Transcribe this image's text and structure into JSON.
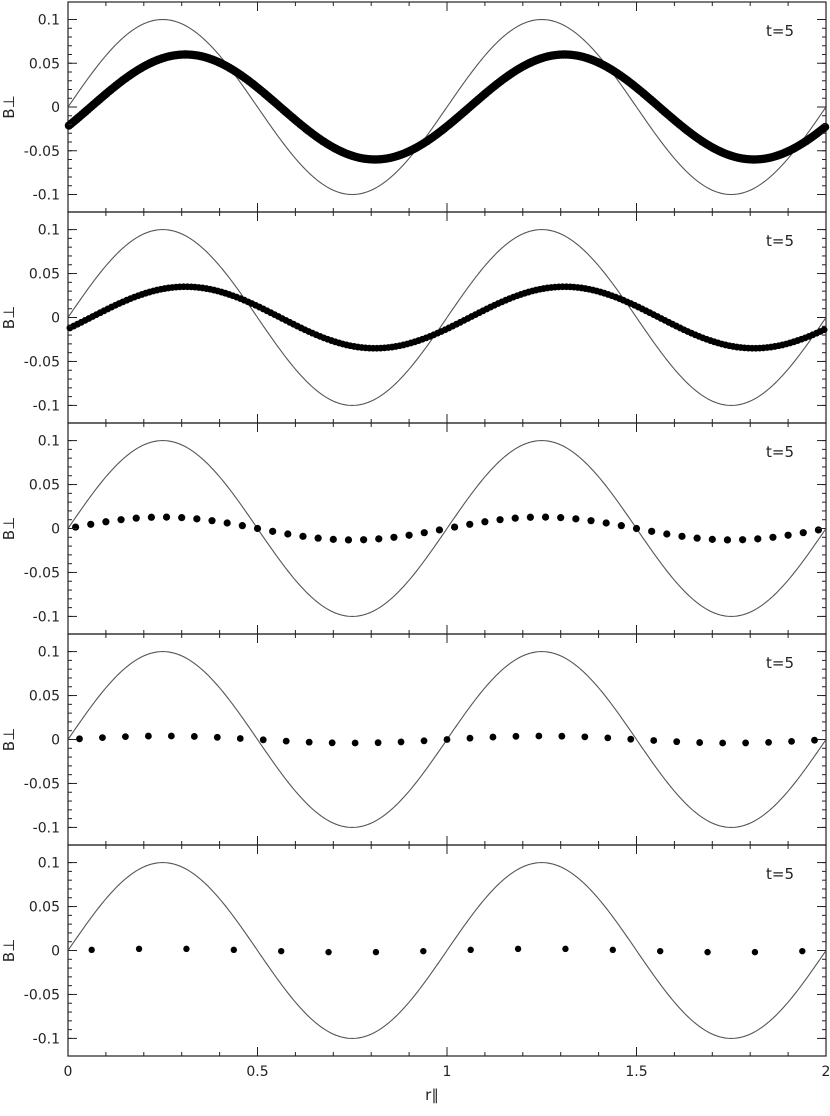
{
  "chart_data": [
    {
      "type": "scatter",
      "annotation": "t=5",
      "ylabel": "B⊥",
      "xlabel": "",
      "xlim": [
        0,
        2
      ],
      "ylim": [
        -0.12,
        0.12
      ],
      "xticks": [
        0,
        0.5,
        1,
        1.5,
        2
      ],
      "xtick_labels": [
        "",
        "",
        "",
        "",
        ""
      ],
      "yticks": [
        0.1,
        0.05,
        0,
        -0.05,
        -0.1
      ],
      "ytick_labels": [
        "0.1",
        "0.05",
        "0",
        "-0.05",
        "-0.1"
      ],
      "reference_curve": {
        "amplitude": 0.1,
        "period": 1,
        "phase": 0
      },
      "series": [
        {
          "amplitude": 0.06,
          "phase": 0.06,
          "n_points": 400
        }
      ]
    },
    {
      "type": "scatter",
      "annotation": "t=5",
      "ylabel": "B⊥",
      "xlabel": "",
      "xlim": [
        0,
        2
      ],
      "ylim": [
        -0.12,
        0.12
      ],
      "xticks": [
        0,
        0.5,
        1,
        1.5,
        2
      ],
      "xtick_labels": [
        "",
        "",
        "",
        "",
        ""
      ],
      "yticks": [
        0.1,
        0.05,
        0,
        -0.05,
        -0.1
      ],
      "ytick_labels": [
        "0.1",
        "0.05",
        "0",
        "-0.05",
        "-0.1"
      ],
      "reference_curve": {
        "amplitude": 0.1,
        "period": 1,
        "phase": 0
      },
      "series": [
        {
          "amplitude": 0.035,
          "phase": 0.06,
          "n_points": 200
        }
      ]
    },
    {
      "type": "scatter",
      "annotation": "t=5",
      "ylabel": "B⊥",
      "xlabel": "",
      "xlim": [
        0,
        2
      ],
      "ylim": [
        -0.12,
        0.12
      ],
      "xticks": [
        0,
        0.5,
        1,
        1.5,
        2
      ],
      "xtick_labels": [
        "",
        "",
        "",
        "",
        ""
      ],
      "yticks": [
        0.1,
        0.05,
        0,
        -0.05,
        -0.1
      ],
      "ytick_labels": [
        "0.1",
        "0.05",
        "0",
        "-0.05",
        "-0.1"
      ],
      "reference_curve": {
        "amplitude": 0.1,
        "period": 1,
        "phase": 0
      },
      "series": [
        {
          "amplitude": 0.013,
          "phase": 0.0,
          "n_points": 50
        }
      ]
    },
    {
      "type": "scatter",
      "annotation": "t=5",
      "ylabel": "B⊥",
      "xlabel": "",
      "xlim": [
        0,
        2
      ],
      "ylim": [
        -0.12,
        0.12
      ],
      "xticks": [
        0,
        0.5,
        1,
        1.5,
        2
      ],
      "xtick_labels": [
        "",
        "",
        "",
        "",
        ""
      ],
      "yticks": [
        0.1,
        0.05,
        0,
        -0.05,
        -0.1
      ],
      "ytick_labels": [
        "0.1",
        "0.05",
        "0",
        "-0.05",
        "-0.1"
      ],
      "reference_curve": {
        "amplitude": 0.1,
        "period": 1,
        "phase": 0
      },
      "series": [
        {
          "amplitude": 0.004,
          "phase": 0.0,
          "n_points": 33
        }
      ]
    },
    {
      "type": "scatter",
      "annotation": "t=5",
      "ylabel": "B⊥",
      "xlabel": "r∥",
      "xlim": [
        0,
        2
      ],
      "ylim": [
        -0.12,
        0.12
      ],
      "xticks": [
        0,
        0.5,
        1,
        1.5,
        2
      ],
      "xtick_labels": [
        "0",
        "0.5",
        "1",
        "1.5",
        "2"
      ],
      "yticks": [
        0.1,
        0.05,
        0,
        -0.05,
        -0.1
      ],
      "ytick_labels": [
        "0.1",
        "0.05",
        "0",
        "-0.05",
        "-0.1"
      ],
      "reference_curve": {
        "amplitude": 0.1,
        "period": 1,
        "phase": 0
      },
      "series": [
        {
          "amplitude": 0.002,
          "phase": 0.0,
          "n_points": 16
        }
      ]
    }
  ]
}
